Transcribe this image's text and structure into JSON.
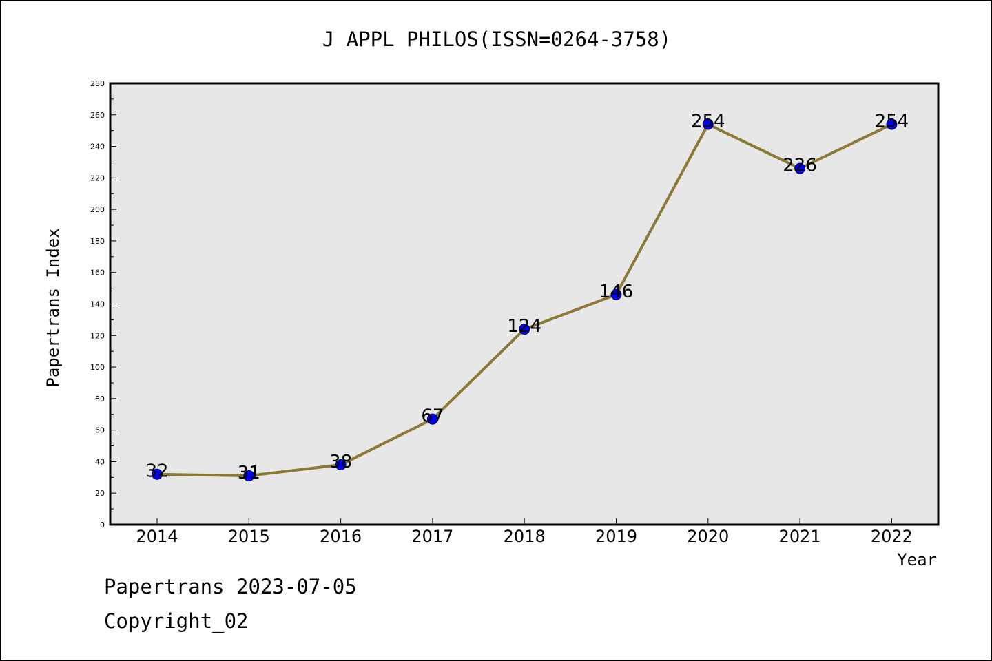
{
  "chart_data": {
    "type": "line",
    "title": "J APPL PHILOS(ISSN=0264-3758)",
    "xlabel": "Year",
    "ylabel": "Papertrans Index",
    "categories": [
      "2014",
      "2015",
      "2016",
      "2017",
      "2018",
      "2019",
      "2020",
      "2021",
      "2022"
    ],
    "values": [
      32,
      31,
      38,
      67,
      124,
      146,
      254,
      226,
      254
    ],
    "data_labels": [
      "32",
      "31",
      "38",
      "67",
      "124",
      "146",
      "254",
      "226",
      "254"
    ],
    "ylim": [
      0,
      280
    ],
    "yticks": [
      "0",
      "20",
      "40",
      "60",
      "80",
      "100",
      "120",
      "140",
      "160",
      "180",
      "200",
      "220",
      "240",
      "260",
      "280"
    ],
    "grid": false,
    "colors": {
      "line": "#8b7a36",
      "marker": "#0000ff",
      "plot_background": "#e7e7e7"
    }
  },
  "footer": {
    "date_line": "Papertrans 2023-07-05",
    "copyright_line": "Copyright_02"
  }
}
